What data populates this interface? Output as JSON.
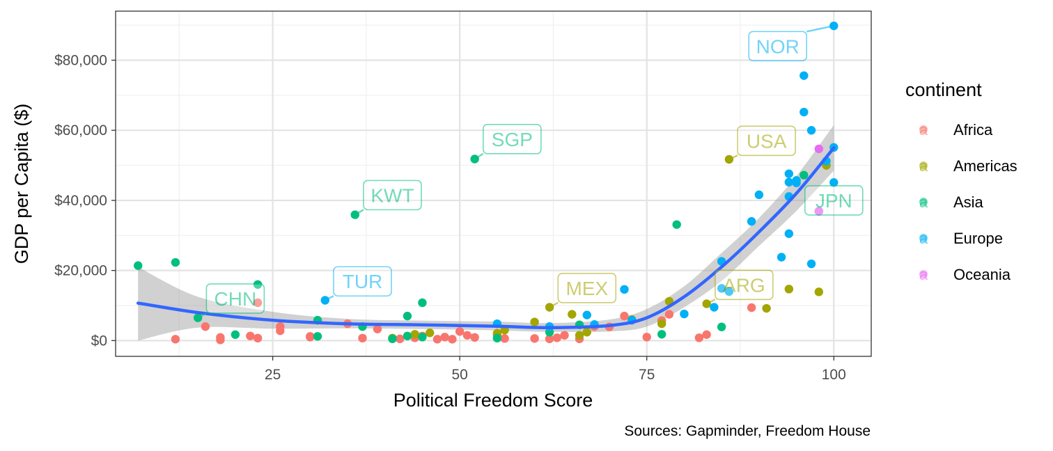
{
  "chart_data": {
    "type": "scatter",
    "xlabel": "Political Freedom Score",
    "ylabel": "GDP per Capita ($)",
    "caption": "Sources: Gapminder, Freedom House",
    "xlim": [
      4,
      105
    ],
    "ylim": [
      -4500,
      94000
    ],
    "x_ticks": [
      {
        "value": 25,
        "label": "25"
      },
      {
        "value": 50,
        "label": "50"
      },
      {
        "value": 75,
        "label": "75"
      },
      {
        "value": 100,
        "label": "100"
      }
    ],
    "y_ticks": [
      {
        "value": 0,
        "label": "$0"
      },
      {
        "value": 20000,
        "label": "$20,000"
      },
      {
        "value": 40000,
        "label": "$40,000"
      },
      {
        "value": 60000,
        "label": "$60,000"
      },
      {
        "value": 80000,
        "label": "$80,000"
      }
    ],
    "grid": true,
    "legend": {
      "title": "continent",
      "position": "right",
      "key_glyph": "a",
      "entries": [
        {
          "name": "Africa",
          "color": "#F8766D"
        },
        {
          "name": "Americas",
          "color": "#A3A500"
        },
        {
          "name": "Asia",
          "color": "#00BF7D"
        },
        {
          "name": "Europe",
          "color": "#00B0F6"
        },
        {
          "name": "Oceania",
          "color": "#E76BF3"
        }
      ]
    },
    "smooth_line": {
      "color": "#3366FF",
      "band_color": "#999999",
      "x": [
        7,
        15,
        25,
        35,
        45,
        55,
        62,
        70,
        75,
        80,
        85,
        90,
        95,
        100
      ],
      "y": [
        10700,
        8000,
        5800,
        4800,
        4500,
        4100,
        3700,
        4300,
        6500,
        12500,
        21000,
        31000,
        42000,
        55000
      ],
      "upper": [
        21000,
        12500,
        8200,
        6200,
        5700,
        5400,
        5000,
        6000,
        9000,
        15500,
        25000,
        35000,
        47000,
        61500
      ],
      "lower": [
        0,
        3700,
        3400,
        3500,
        3300,
        2900,
        2500,
        2600,
        4000,
        9500,
        17000,
        27000,
        37000,
        48500
      ]
    },
    "callouts": [
      {
        "text": "NOR",
        "continent": "Europe",
        "x": 100,
        "y": 89800,
        "label_x": 92.5,
        "label_y": 84000
      },
      {
        "text": "SGP",
        "continent": "Asia",
        "x": 52,
        "y": 51800,
        "label_x": 57,
        "label_y": 57500
      },
      {
        "text": "USA",
        "continent": "Americas",
        "x": 86,
        "y": 51700,
        "label_x": 91,
        "label_y": 57000
      },
      {
        "text": "KWT",
        "continent": "Asia",
        "x": 36,
        "y": 35900,
        "label_x": 41,
        "label_y": 41500
      },
      {
        "text": "JPN",
        "continent": "Asia",
        "x": 98,
        "y": 36900,
        "label_x": 100,
        "label_y": 40000
      },
      {
        "text": "TUR",
        "continent": "Europe",
        "x": 32,
        "y": 11500,
        "label_x": 37,
        "label_y": 16900
      },
      {
        "text": "MEX",
        "continent": "Americas",
        "x": 62,
        "y": 9500,
        "label_x": 67,
        "label_y": 15000
      },
      {
        "text": "ARG",
        "continent": "Americas",
        "x": 83,
        "y": 10500,
        "label_x": 88,
        "label_y": 15900
      },
      {
        "text": "CHN",
        "continent": "Asia",
        "x": 15,
        "y": 6500,
        "label_x": 20,
        "label_y": 12000
      }
    ],
    "series": [
      {
        "name": "Africa",
        "color": "#F8766D",
        "points": [
          [
            12,
            400
          ],
          [
            16,
            4000
          ],
          [
            18,
            900
          ],
          [
            18,
            200
          ],
          [
            22,
            1300
          ],
          [
            23,
            700
          ],
          [
            23,
            10800
          ],
          [
            26,
            4000
          ],
          [
            26,
            2800
          ],
          [
            30,
            1000
          ],
          [
            30,
            1200
          ],
          [
            35,
            4800
          ],
          [
            37,
            700
          ],
          [
            39,
            3300
          ],
          [
            42,
            500
          ],
          [
            44,
            800
          ],
          [
            45,
            1300
          ],
          [
            47,
            400
          ],
          [
            48,
            1000
          ],
          [
            49,
            400
          ],
          [
            50,
            2600
          ],
          [
            51,
            1500
          ],
          [
            52,
            900
          ],
          [
            55,
            1600
          ],
          [
            56,
            600
          ],
          [
            60,
            600
          ],
          [
            62,
            500
          ],
          [
            63,
            800
          ],
          [
            64,
            1500
          ],
          [
            66,
            500
          ],
          [
            68,
            4000
          ],
          [
            70,
            3900
          ],
          [
            72,
            7000
          ],
          [
            75,
            1000
          ],
          [
            77,
            5700
          ],
          [
            78,
            7500
          ],
          [
            82,
            800
          ],
          [
            83,
            1700
          ],
          [
            89,
            9400
          ]
        ]
      },
      {
        "name": "Americas",
        "color": "#A3A500",
        "points": [
          [
            41,
            700
          ],
          [
            44,
            1800
          ],
          [
            46,
            2200
          ],
          [
            55,
            2100
          ],
          [
            56,
            3000
          ],
          [
            60,
            5300
          ],
          [
            62,
            9500
          ],
          [
            65,
            7500
          ],
          [
            66,
            1500
          ],
          [
            67,
            2400
          ],
          [
            73,
            6000
          ],
          [
            77,
            4800
          ],
          [
            78,
            11200
          ],
          [
            83,
            10500
          ],
          [
            86,
            51700
          ],
          [
            91,
            9200
          ],
          [
            94,
            14700
          ],
          [
            98,
            13900
          ],
          [
            99,
            50000
          ]
        ]
      },
      {
        "name": "Asia",
        "color": "#00BF7D",
        "points": [
          [
            7,
            21400
          ],
          [
            12,
            22300
          ],
          [
            15,
            6500
          ],
          [
            20,
            1700
          ],
          [
            23,
            16000
          ],
          [
            31,
            5800
          ],
          [
            31,
            1200
          ],
          [
            36,
            35900
          ],
          [
            37,
            4000
          ],
          [
            41,
            500
          ],
          [
            43,
            7000
          ],
          [
            43,
            1300
          ],
          [
            45,
            10800
          ],
          [
            45,
            1000
          ],
          [
            52,
            51800
          ],
          [
            55,
            700
          ],
          [
            62,
            2400
          ],
          [
            66,
            4500
          ],
          [
            77,
            1800
          ],
          [
            79,
            33100
          ],
          [
            85,
            3900
          ],
          [
            96,
            47200
          ],
          [
            98,
            36900
          ]
        ]
      },
      {
        "name": "Europe",
        "color": "#00B0F6",
        "points": [
          [
            32,
            11500
          ],
          [
            55,
            4800
          ],
          [
            62,
            4000
          ],
          [
            67,
            7300
          ],
          [
            68,
            4600
          ],
          [
            72,
            14600
          ],
          [
            73,
            5800
          ],
          [
            80,
            7600
          ],
          [
            84,
            9500
          ],
          [
            85,
            22600
          ],
          [
            85,
            14900
          ],
          [
            86,
            14000
          ],
          [
            89,
            34000
          ],
          [
            90,
            41600
          ],
          [
            93,
            23800
          ],
          [
            94,
            47600
          ],
          [
            94,
            45200
          ],
          [
            94,
            41100
          ],
          [
            94,
            30500
          ],
          [
            95,
            45700
          ],
          [
            95,
            45000
          ],
          [
            96,
            75600
          ],
          [
            96,
            65200
          ],
          [
            97,
            60000
          ],
          [
            97,
            21900
          ],
          [
            99,
            51200
          ],
          [
            100,
            89800
          ],
          [
            100,
            55100
          ],
          [
            100,
            45100
          ]
        ]
      },
      {
        "name": "Oceania",
        "color": "#E76BF3",
        "points": [
          [
            98,
            54700
          ],
          [
            98,
            36900
          ]
        ]
      }
    ]
  }
}
